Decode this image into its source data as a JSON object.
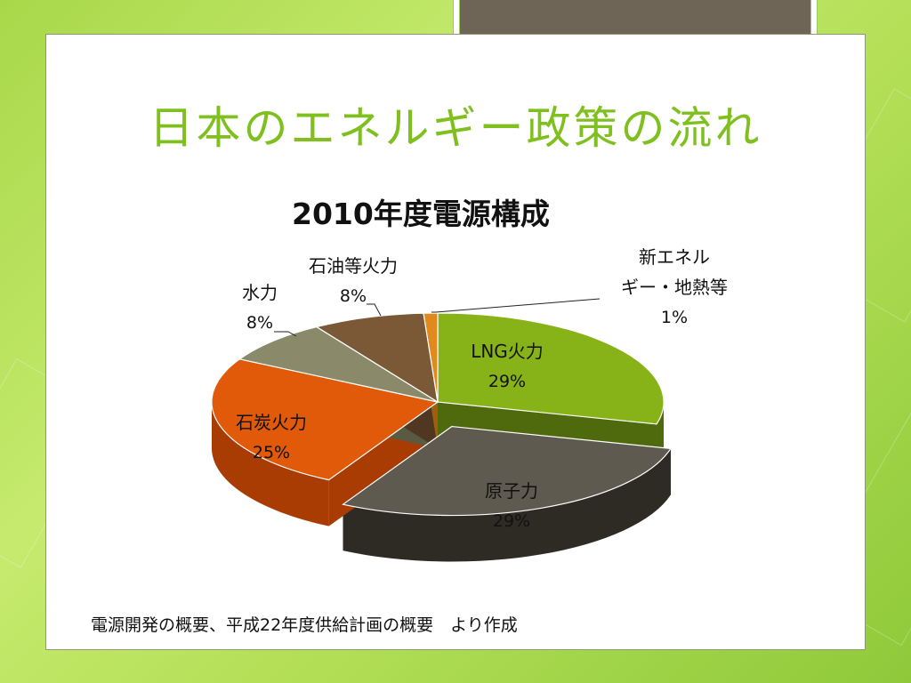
{
  "slide": {
    "title": "日本のエネルギー政策の流れ",
    "source_note": "電源開発の概要、平成22年度供給計画の概要　より作成"
  },
  "chart_data": {
    "type": "pie",
    "title": "2010年度電源構成",
    "slices": [
      {
        "label": "LNG火力",
        "value": 29,
        "pct_label": "29%",
        "color": "#88b318",
        "side_color": "#4f6a0c"
      },
      {
        "label": "原子力",
        "value": 29,
        "pct_label": "29%",
        "color": "#5e5a4f",
        "side_color": "#2e2b25",
        "exploded": true
      },
      {
        "label": "石炭火力",
        "value": 25,
        "pct_label": "25%",
        "color": "#e05a0a",
        "side_color": "#a83c03"
      },
      {
        "label": "水力",
        "value": 8,
        "pct_label": "8%",
        "color": "#8a8a6a",
        "side_color": "#5a5a42"
      },
      {
        "label": "石油等火力",
        "value": 8,
        "pct_label": "8%",
        "color": "#7b5836",
        "side_color": "#4f3721"
      },
      {
        "label": "新エネルギー・地熱等",
        "label_line1": "新エネル",
        "label_line2": "ギー・地熱等",
        "value": 1,
        "pct_label": "1%",
        "color": "#e08a1e",
        "side_color": "#a15e0c"
      }
    ]
  }
}
